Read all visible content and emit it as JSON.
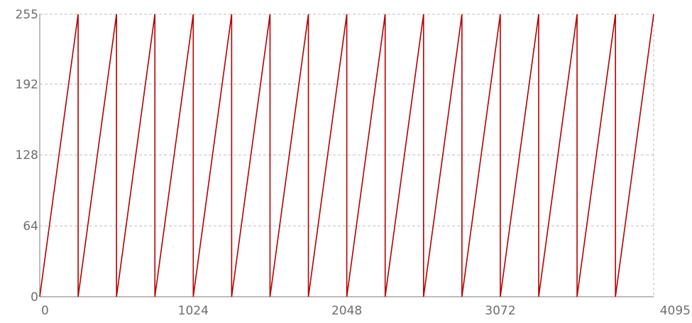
{
  "chart_data": {
    "type": "line",
    "title": "",
    "xlabel": "",
    "ylabel": "",
    "xlim": [
      0,
      4095
    ],
    "ylim": [
      0,
      255
    ],
    "x_ticks": [
      0,
      1024,
      2048,
      3072,
      4095
    ],
    "x_tick_labels": [
      "0",
      "1024",
      "2048",
      "3072",
      "4095"
    ],
    "y_ticks": [
      0,
      64,
      128,
      192,
      255
    ],
    "y_tick_labels": [
      "0",
      "64",
      "128",
      "192",
      "255"
    ],
    "grid": true,
    "legend": "none",
    "colors": {
      "series": "#b30000",
      "grid": "#bdbdbd",
      "axis": "#7a7a7a",
      "tick_text": "#6e6e6e"
    },
    "series": [
      {
        "x": [
          0,
          256,
          256,
          512,
          512,
          768,
          768,
          1024,
          1024,
          1280,
          1280,
          1536,
          1536,
          1792,
          1792,
          2048,
          2048,
          2304,
          2304,
          2560,
          2560,
          2816,
          2816,
          3072,
          3072,
          3328,
          3328,
          3584,
          3584,
          3840,
          3840,
          4095
        ],
        "y": [
          0,
          255,
          0,
          255,
          0,
          255,
          0,
          255,
          0,
          255,
          0,
          255,
          0,
          255,
          0,
          255,
          0,
          255,
          0,
          255,
          0,
          255,
          0,
          255,
          0,
          255,
          0,
          255,
          0,
          255,
          0,
          255
        ]
      }
    ]
  }
}
